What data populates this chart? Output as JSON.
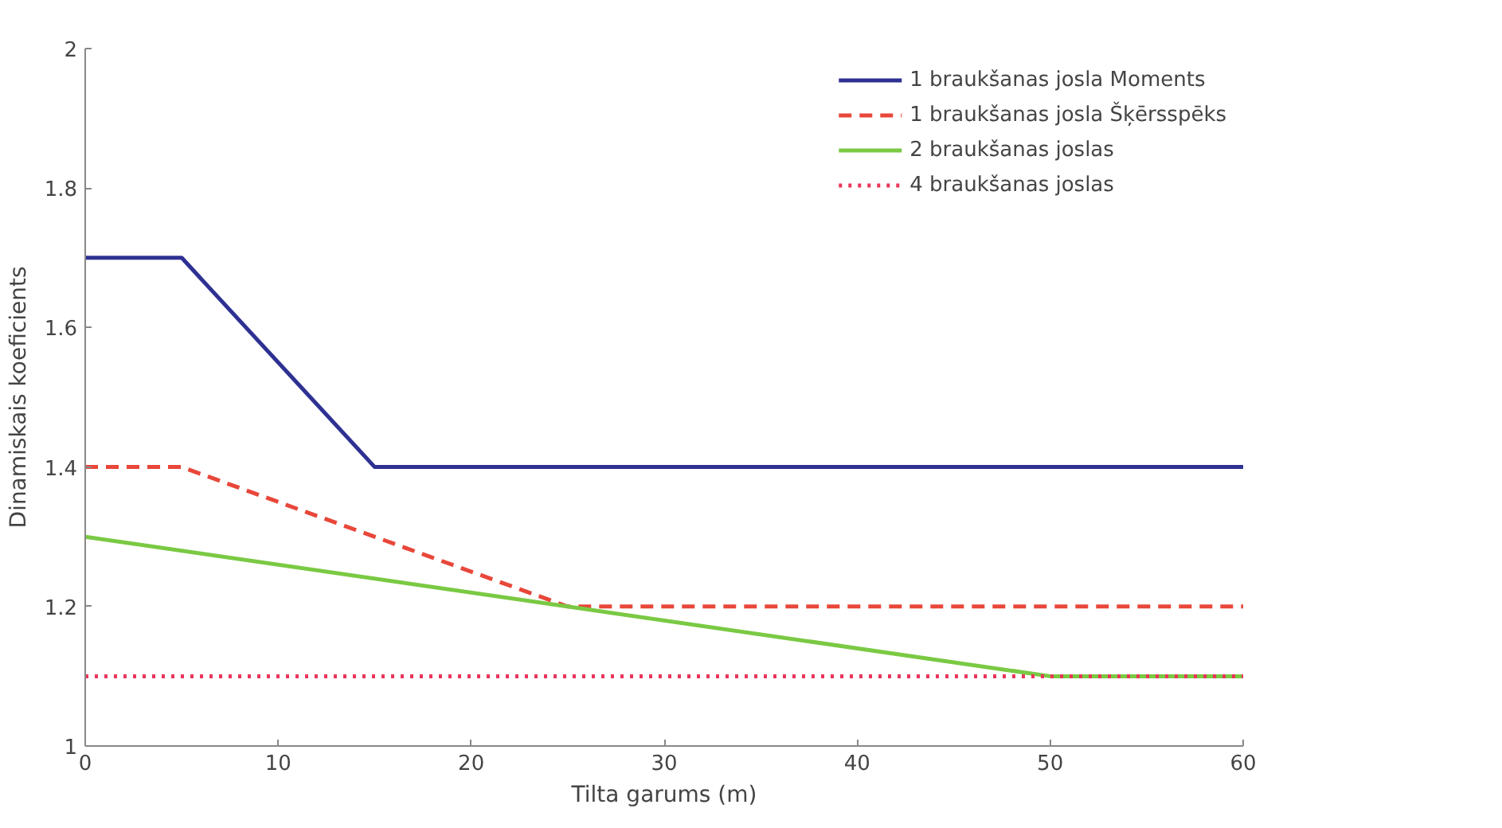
{
  "chart_data": {
    "type": "line",
    "xlabel": "Tilta garums (m)",
    "ylabel": "Dinamiskais koeficients",
    "xlim": [
      0,
      60
    ],
    "xticks": [
      0,
      10,
      20,
      30,
      40,
      50,
      60
    ],
    "ylim": [
      1,
      2
    ],
    "yticks": [
      1,
      1.2,
      1.4,
      1.6,
      1.8,
      2
    ],
    "grid": false,
    "legend": "top right",
    "series": [
      {
        "name": "1 braukšanas josla Moments",
        "color": "#2e3192",
        "line_style": "solid",
        "x": [
          0,
          5,
          15,
          60
        ],
        "values": [
          1.7,
          1.7,
          1.4,
          1.4
        ]
      },
      {
        "name": "1 braukšanas josla Šķērsspēks",
        "color": "#e8473a",
        "line_style": "dashed",
        "x": [
          0,
          5,
          25,
          60
        ],
        "values": [
          1.4,
          1.4,
          1.2,
          1.2
        ]
      },
      {
        "name": "2 braukšanas joslas",
        "color": "#7ac943",
        "line_style": "solid",
        "x": [
          0,
          50,
          60
        ],
        "values": [
          1.3,
          1.1,
          1.1
        ]
      },
      {
        "name": "4 braukšanas joslas",
        "color": "#e8365a",
        "line_style": "dotted",
        "x": [
          0,
          60
        ],
        "values": [
          1.1,
          1.1
        ]
      }
    ]
  }
}
